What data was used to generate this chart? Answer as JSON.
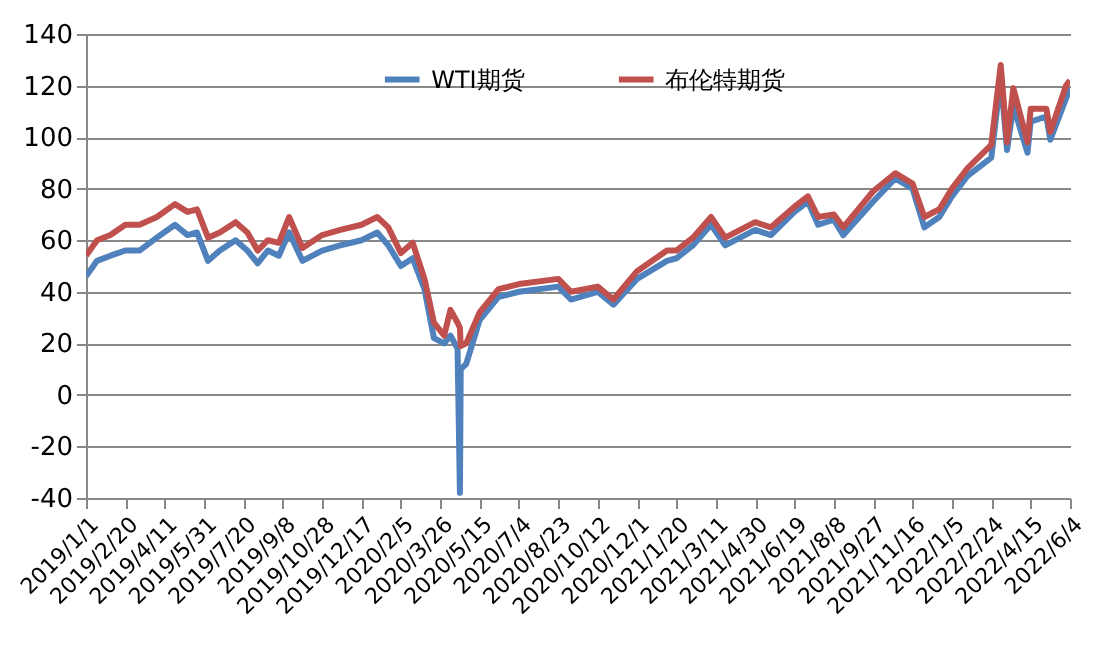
{
  "chart_data": {
    "type": "line",
    "x": [
      "2019-01-01",
      "2019-01-15",
      "2019-02-01",
      "2019-02-20",
      "2019-03-10",
      "2019-04-01",
      "2019-04-24",
      "2019-05-10",
      "2019-05-22",
      "2019-06-05",
      "2019-06-20",
      "2019-07-10",
      "2019-07-25",
      "2019-08-07",
      "2019-08-20",
      "2019-09-03",
      "2019-09-16",
      "2019-10-03",
      "2019-10-28",
      "2019-11-20",
      "2019-12-17",
      "2020-01-06",
      "2020-01-20",
      "2020-02-05",
      "2020-02-20",
      "2020-03-06",
      "2020-03-18",
      "2020-03-31",
      "2020-04-08",
      "2020-04-17",
      "2020-04-20",
      "2020-04-21",
      "2020-04-28",
      "2020-05-15",
      "2020-06-08",
      "2020-07-04",
      "2020-08-23",
      "2020-09-08",
      "2020-10-12",
      "2020-11-01",
      "2020-12-01",
      "2021-01-08",
      "2021-01-20",
      "2021-02-10",
      "2021-03-05",
      "2021-03-23",
      "2021-04-30",
      "2021-05-20",
      "2021-06-19",
      "2021-07-06",
      "2021-07-19",
      "2021-08-08",
      "2021-08-20",
      "2021-09-27",
      "2021-10-25",
      "2021-11-16",
      "2021-12-01",
      "2021-12-20",
      "2022-01-05",
      "2022-01-25",
      "2022-02-24",
      "2022-03-08",
      "2022-03-16",
      "2022-03-24",
      "2022-04-11",
      "2022-04-15",
      "2022-05-05",
      "2022-05-10",
      "2022-05-30",
      "2022-06-04"
    ],
    "series": [
      {
        "name": "WTI期货",
        "color": "#4f81bd",
        "values": [
          46,
          52,
          54,
          56,
          56,
          61,
          66,
          62,
          63,
          52,
          56,
          60,
          56,
          51,
          56,
          54,
          63,
          52,
          56,
          58,
          60,
          63,
          58,
          50,
          53,
          41,
          22,
          20,
          23,
          18,
          -38,
          10,
          12,
          29,
          38,
          40,
          42,
          37,
          40,
          35,
          45,
          52,
          53,
          58,
          66,
          58,
          64,
          62,
          71,
          75,
          66,
          68,
          62,
          75,
          84,
          80,
          65,
          69,
          77,
          85,
          92,
          123,
          95,
          112,
          94,
          106,
          108,
          99,
          115,
          119
        ]
      },
      {
        "name": "布伦特期货",
        "color": "#c0504d",
        "values": [
          54,
          60,
          62,
          66,
          66,
          69,
          74,
          71,
          72,
          61,
          63,
          67,
          63,
          56,
          60,
          59,
          69,
          57,
          62,
          64,
          66,
          69,
          65,
          55,
          59,
          45,
          28,
          23,
          33,
          28,
          26,
          19,
          20,
          32,
          41,
          43,
          45,
          40,
          42,
          37,
          48,
          56,
          56,
          61,
          69,
          61,
          67,
          65,
          73,
          77,
          69,
          70,
          65,
          79,
          86,
          82,
          69,
          72,
          80,
          88,
          97,
          128,
          98,
          119,
          98,
          111,
          111,
          102,
          120,
          122
        ]
      }
    ],
    "xlim": [
      "2019-01-01",
      "2022-06-04"
    ],
    "xticks": [
      {
        "value": "2019-01-01",
        "label": "2019/1/1"
      },
      {
        "value": "2019-02-20",
        "label": "2019/2/20"
      },
      {
        "value": "2019-04-11",
        "label": "2019/4/11"
      },
      {
        "value": "2019-05-31",
        "label": "2019/5/31"
      },
      {
        "value": "2019-07-20",
        "label": "2019/7/20"
      },
      {
        "value": "2019-09-08",
        "label": "2019/9/8"
      },
      {
        "value": "2019-10-28",
        "label": "2019/10/28"
      },
      {
        "value": "2019-12-17",
        "label": "2019/12/17"
      },
      {
        "value": "2020-02-05",
        "label": "2020/2/5"
      },
      {
        "value": "2020-03-26",
        "label": "2020/3/26"
      },
      {
        "value": "2020-05-15",
        "label": "2020/5/15"
      },
      {
        "value": "2020-07-04",
        "label": "2020/7/4"
      },
      {
        "value": "2020-08-23",
        "label": "2020/8/23"
      },
      {
        "value": "2020-10-12",
        "label": "2020/10/12"
      },
      {
        "value": "2020-12-01",
        "label": "2020/12/1"
      },
      {
        "value": "2021-01-20",
        "label": "2021/1/20"
      },
      {
        "value": "2021-03-11",
        "label": "2021/3/11"
      },
      {
        "value": "2021-04-30",
        "label": "2021/4/30"
      },
      {
        "value": "2021-06-19",
        "label": "2021/6/19"
      },
      {
        "value": "2021-08-08",
        "label": "2021/8/8"
      },
      {
        "value": "2021-09-27",
        "label": "2021/9/27"
      },
      {
        "value": "2021-11-16",
        "label": "2021/11/16"
      },
      {
        "value": "2022-01-05",
        "label": "2022/1/5"
      },
      {
        "value": "2022-02-24",
        "label": "2022/2/24"
      },
      {
        "value": "2022-04-15",
        "label": "2022/4/15"
      },
      {
        "value": "2022-06-04",
        "label": "2022/6/4"
      }
    ],
    "ylim": [
      -40,
      140
    ],
    "yticks": [
      -40,
      -20,
      0,
      20,
      40,
      60,
      80,
      100,
      120,
      140
    ],
    "grid": "y",
    "legend": "top",
    "marker": "none",
    "line_style": "solid"
  }
}
